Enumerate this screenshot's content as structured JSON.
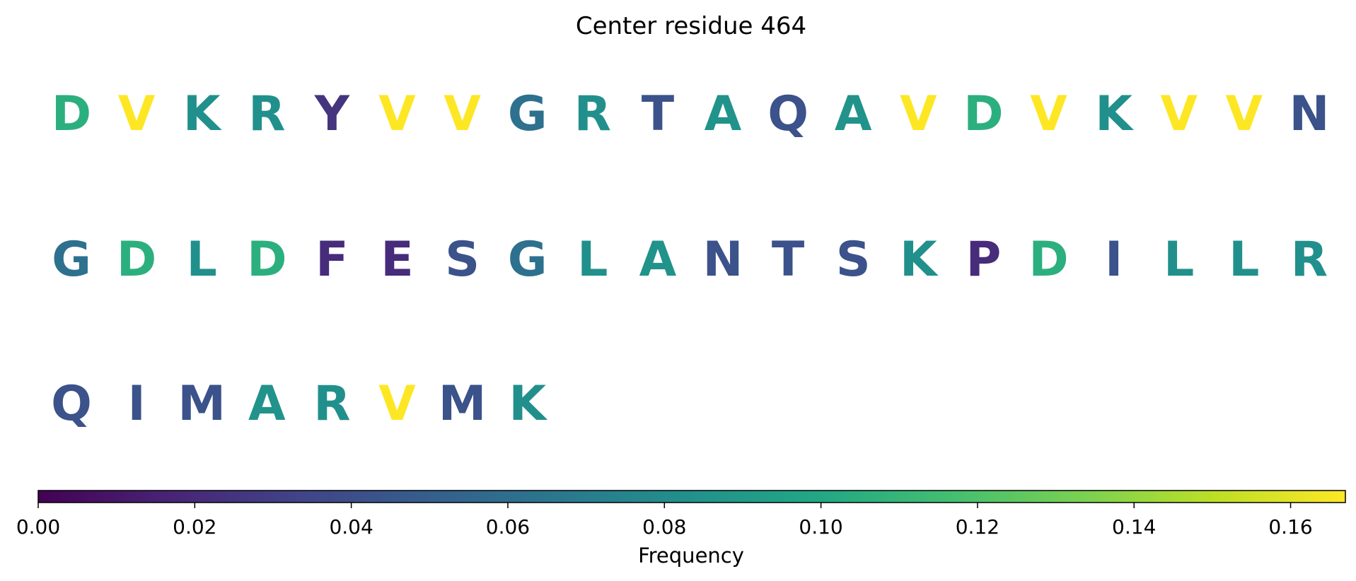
{
  "chart_data": {
    "type": "table",
    "title": "Center residue 464",
    "sequence": [
      {
        "residue": "D",
        "frequency": 0.105
      },
      {
        "residue": "V",
        "frequency": 0.167
      },
      {
        "residue": "K",
        "frequency": 0.083
      },
      {
        "residue": "R",
        "frequency": 0.083
      },
      {
        "residue": "Y",
        "frequency": 0.025
      },
      {
        "residue": "V",
        "frequency": 0.167
      },
      {
        "residue": "V",
        "frequency": 0.167
      },
      {
        "residue": "G",
        "frequency": 0.062
      },
      {
        "residue": "R",
        "frequency": 0.083
      },
      {
        "residue": "T",
        "frequency": 0.042
      },
      {
        "residue": "A",
        "frequency": 0.085
      },
      {
        "residue": "Q",
        "frequency": 0.042
      },
      {
        "residue": "A",
        "frequency": 0.085
      },
      {
        "residue": "V",
        "frequency": 0.167
      },
      {
        "residue": "D",
        "frequency": 0.105
      },
      {
        "residue": "V",
        "frequency": 0.167
      },
      {
        "residue": "K",
        "frequency": 0.083
      },
      {
        "residue": "V",
        "frequency": 0.167
      },
      {
        "residue": "V",
        "frequency": 0.167
      },
      {
        "residue": "N",
        "frequency": 0.042
      },
      {
        "residue": "G",
        "frequency": 0.062
      },
      {
        "residue": "D",
        "frequency": 0.105
      },
      {
        "residue": "L",
        "frequency": 0.083
      },
      {
        "residue": "D",
        "frequency": 0.105
      },
      {
        "residue": "F",
        "frequency": 0.021
      },
      {
        "residue": "E",
        "frequency": 0.021
      },
      {
        "residue": "S",
        "frequency": 0.042
      },
      {
        "residue": "G",
        "frequency": 0.062
      },
      {
        "residue": "L",
        "frequency": 0.083
      },
      {
        "residue": "A",
        "frequency": 0.085
      },
      {
        "residue": "N",
        "frequency": 0.042
      },
      {
        "residue": "T",
        "frequency": 0.042
      },
      {
        "residue": "S",
        "frequency": 0.042
      },
      {
        "residue": "K",
        "frequency": 0.083
      },
      {
        "residue": "P",
        "frequency": 0.021
      },
      {
        "residue": "D",
        "frequency": 0.105
      },
      {
        "residue": "I",
        "frequency": 0.042
      },
      {
        "residue": "L",
        "frequency": 0.083
      },
      {
        "residue": "L",
        "frequency": 0.083
      },
      {
        "residue": "R",
        "frequency": 0.083
      },
      {
        "residue": "Q",
        "frequency": 0.042
      },
      {
        "residue": "I",
        "frequency": 0.042
      },
      {
        "residue": "M",
        "frequency": 0.042
      },
      {
        "residue": "A",
        "frequency": 0.085
      },
      {
        "residue": "R",
        "frequency": 0.083
      },
      {
        "residue": "V",
        "frequency": 0.167
      },
      {
        "residue": "M",
        "frequency": 0.042
      },
      {
        "residue": "K",
        "frequency": 0.083
      }
    ],
    "residues_per_row": 20,
    "colorbar": {
      "colormap": "viridis",
      "label": "Frequency",
      "range": [
        0,
        0.167
      ],
      "ticks": [
        0.0,
        0.02,
        0.04,
        0.06,
        0.08,
        0.1,
        0.12,
        0.14,
        0.16
      ],
      "tick_labels": [
        "0.00",
        "0.02",
        "0.04",
        "0.06",
        "0.08",
        "0.10",
        "0.12",
        "0.14",
        "0.16"
      ],
      "orientation": "horizontal"
    }
  }
}
